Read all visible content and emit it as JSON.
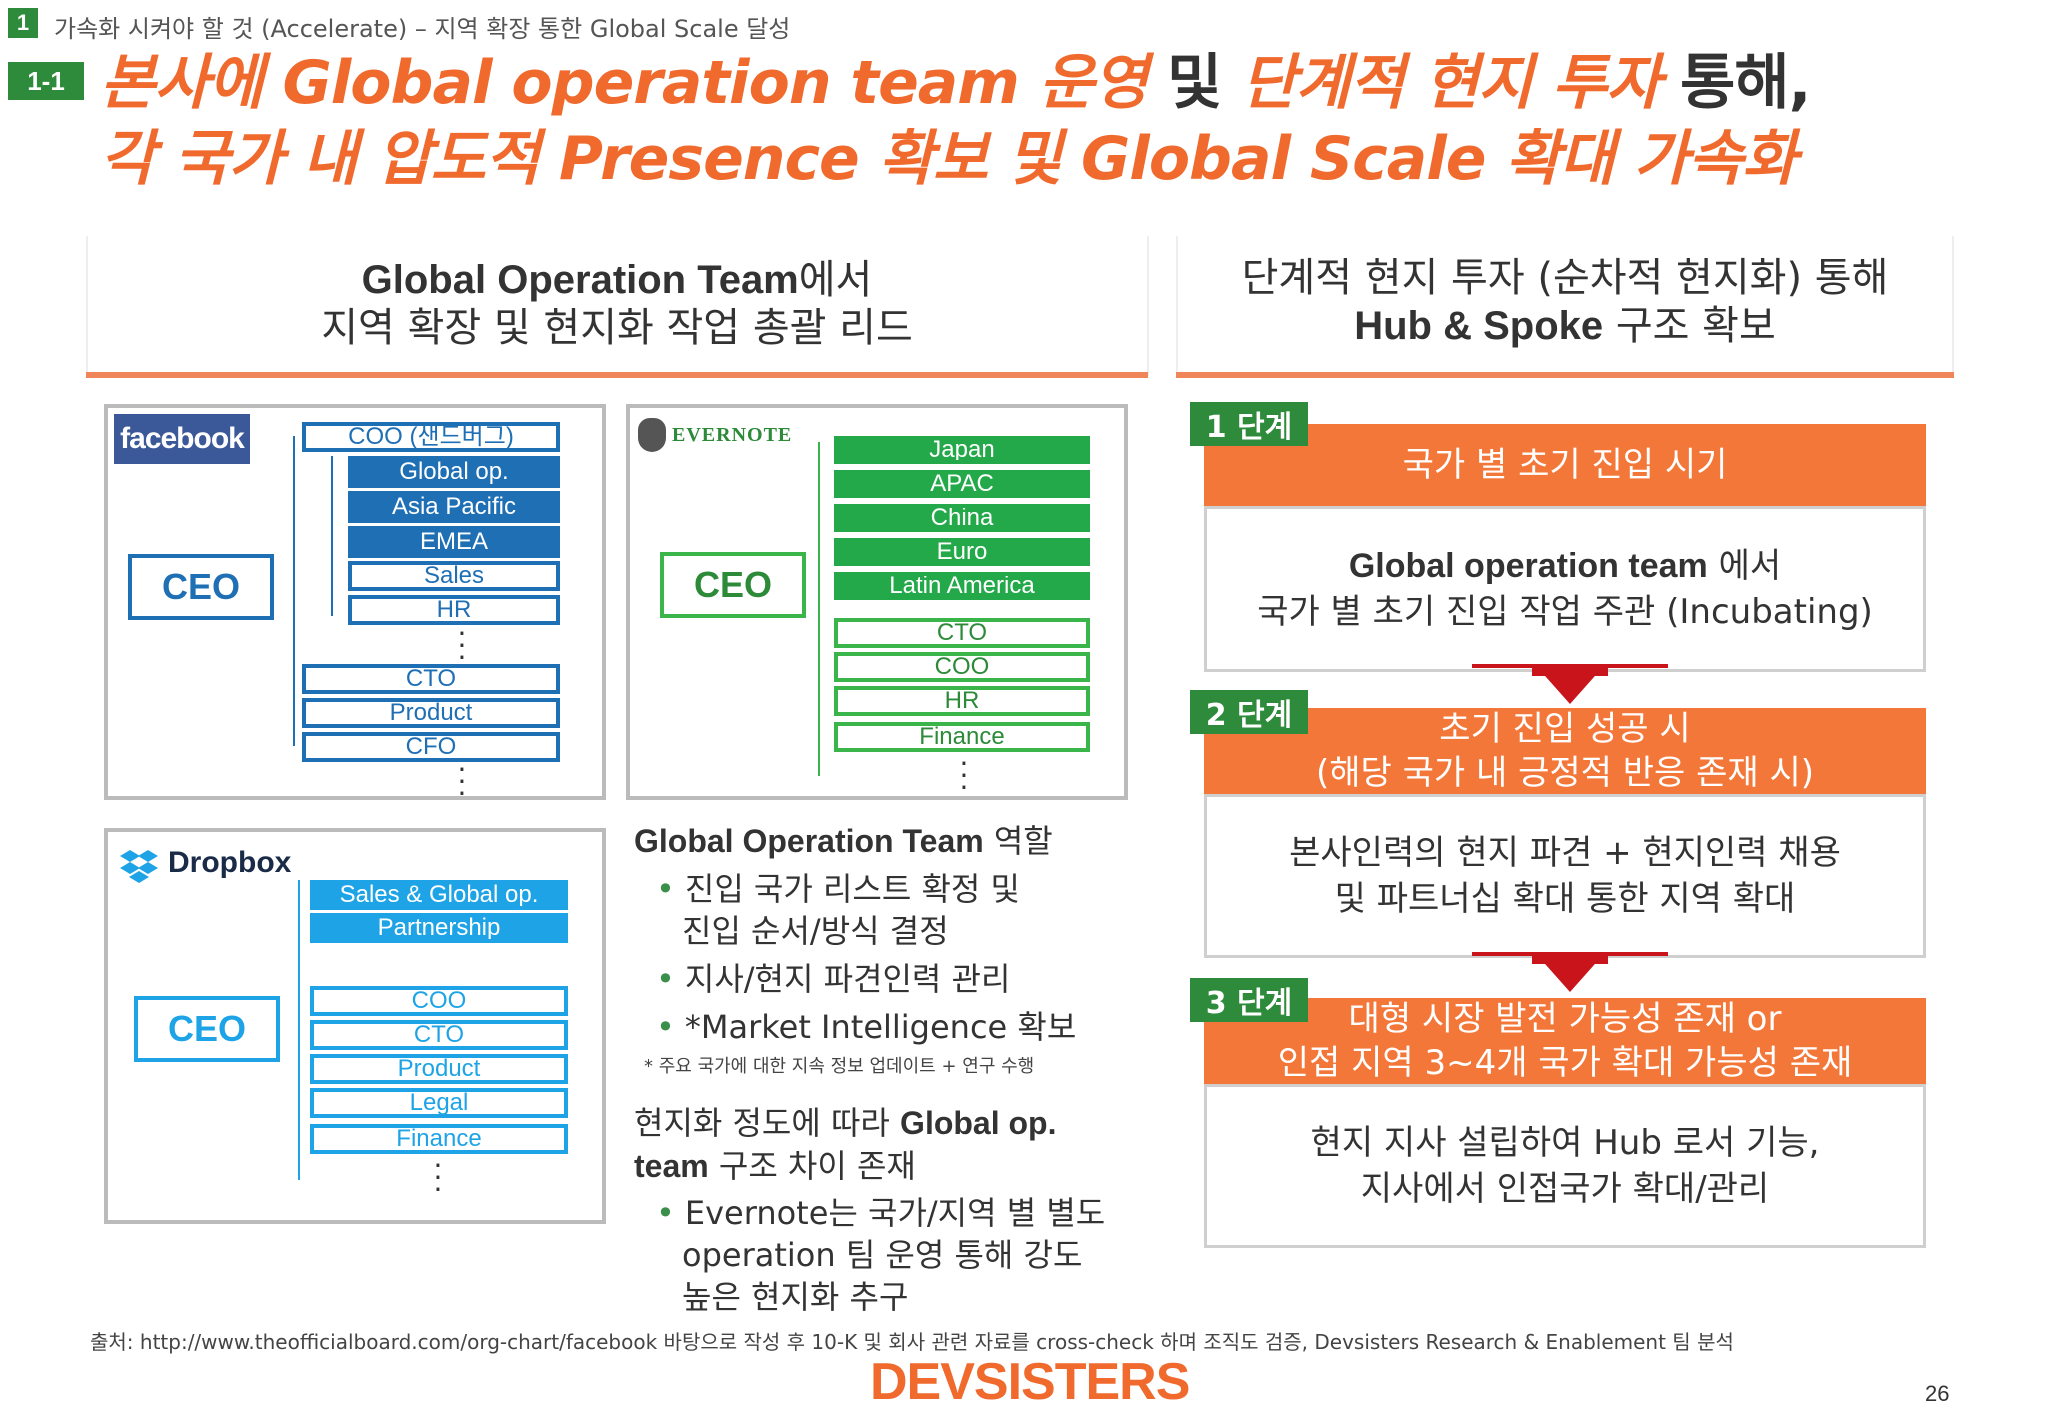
{
  "section": {
    "number": "1",
    "text": "가속화 시켜야 할 것 (Accelerate) – 지역 확장 통한 Global Scale 달성"
  },
  "subsection": {
    "number": "1-1"
  },
  "title": {
    "line1_a": "본사에 Global operation team 운영",
    "line1_b": " 및 ",
    "line1_c": "단계적 현지 투자",
    "line1_d": " 통해,",
    "line2": "각 국가 내 압도적 Presence 확보 및 Global Scale 확대 가속화"
  },
  "left_heading": {
    "line1_bold": "Global Operation Team",
    "line1_rest": "에서",
    "line2": "지역 확장 및 현지화 작업 총괄 리드"
  },
  "right_heading": {
    "line1": "단계적 현지 투자 (순차적 현지화) 통해",
    "line2_bold": "Hub & Spoke",
    "line2_rest": " 구조 확보"
  },
  "facebook": {
    "logo": "facebook",
    "ceo": "CEO",
    "boxes": [
      "COO (샌드버그)",
      "Global op.",
      "Asia Pacific",
      "EMEA",
      "Sales",
      "HR",
      "CTO",
      "Product",
      "CFO"
    ]
  },
  "evernote": {
    "logo": "EVERNOTE",
    "ceo": "CEO",
    "boxes": [
      "Japan",
      "APAC",
      "China",
      "Euro",
      "Latin America",
      "CTO",
      "COO",
      "HR",
      "Finance"
    ]
  },
  "dropbox": {
    "logo": "Dropbox",
    "ceo": "CEO",
    "boxes": [
      "Sales & Global op.",
      "Partnership",
      "COO",
      "CTO",
      "Product",
      "Legal",
      "Finance"
    ]
  },
  "role": {
    "heading_bold": "Global Operation Team",
    "heading_rest": " 역할",
    "bullets": [
      "진입 국가 리스트 확정 및",
      "진입 순서/방식 결정",
      "지사/현지 파견인력 관리",
      "*Market Intelligence 확보"
    ],
    "note": "* 주요 국가에 대한 지속 정보 업데이트 + 연구 수행",
    "diff_a": "현지화 정도에 따라 ",
    "diff_b": "Global op.",
    "diff_c": "team",
    "diff_d": " 구조 차이 존재",
    "ev_bullet": [
      "Evernote는 국가/지역 별 별도",
      "operation 팀 운영 통해 강도",
      "높은 현지화 추구"
    ]
  },
  "stages": [
    {
      "label": "1 단계",
      "header": [
        "국가 별 초기 진입 시기"
      ],
      "body_bold": "Global operation team",
      "body": [
        " 에서",
        "국가 별 초기 진입 작업 주관 (Incubating)"
      ]
    },
    {
      "label": "2 단계",
      "header": [
        "초기 진입 성공 시",
        "(해당 국가 내 긍정적 반응 존재 시)"
      ],
      "body": [
        "본사인력의 현지 파견 + 현지인력 채용",
        "및 파트너십 확대 통한 지역 확대"
      ]
    },
    {
      "label": "3 단계",
      "header": [
        "대형 시장 발전 가능성 존재 or",
        "인접 지역 3~4개 국가 확대 가능성 존재"
      ],
      "body": [
        "현지 지사 설립하여 Hub 로서 기능,",
        "지사에서 인접국가 확대/관리"
      ]
    }
  ],
  "footer": {
    "source": "출처: http://www.theofficialboard.com/org-chart/facebook 바탕으로 작성 후 10-K 및 회사 관련 자료를 cross-check 하며 조직도 검증, Devsisters Research & Enablement 팀 분석",
    "logo": "DEVSISTERS",
    "page": "26"
  },
  "colors": {
    "green": "#2e8b3c",
    "orange": "#f4773a",
    "facebook_blue": "#1f6fb5",
    "evernote_green": "#24a94a",
    "dropbox_blue": "#1ea4e6",
    "arrow_red": "#c8141a"
  }
}
